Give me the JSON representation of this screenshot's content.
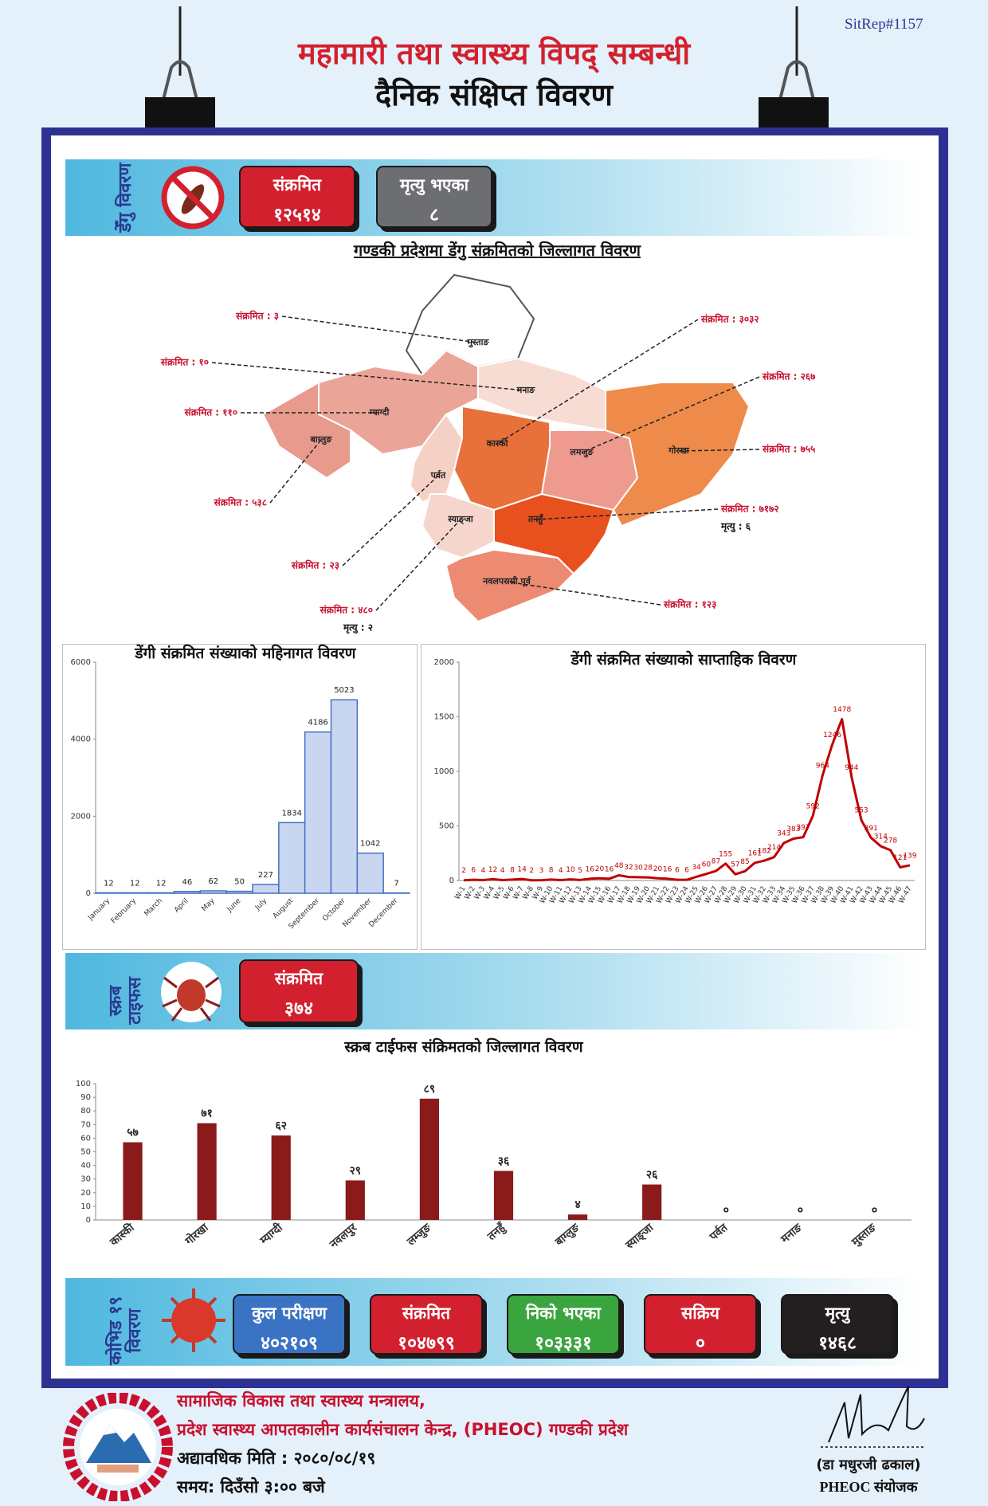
{
  "header": {
    "sitrep": "SitRep#1157",
    "title": "महामारी तथा स्वास्थ्य विपद् सम्बन्धी",
    "subtitle": "दैनिक संक्षिप्त विवरण"
  },
  "dengue": {
    "label": "डेँगु विवरण",
    "cards": [
      {
        "label": "संक्रमित",
        "value": "१२५१४"
      },
      {
        "label": "मृत्यु भएका",
        "value": "८"
      }
    ],
    "map": {
      "title": "गण्डकी प्रदेशमा डेंगु संक्रमितको जिल्लागत विवरण",
      "districts": [
        {
          "name": "मुस्ताङ",
          "cases": "संक्रमित : ३"
        },
        {
          "name": "मनाङ",
          "cases": "संक्रमित : १०"
        },
        {
          "name": "म्याग्दी",
          "cases": "संक्रमित : ११०"
        },
        {
          "name": "बाग्लुङ",
          "cases": "संक्रमित : ५३८"
        },
        {
          "name": "पर्वत",
          "cases": "संक्रमित : २३"
        },
        {
          "name": "स्याङ्जा",
          "cases": "संक्रमित : ४८०",
          "deaths": "मृत्यु : २"
        },
        {
          "name": "कास्की",
          "cases": "संक्रमित : ३०३२"
        },
        {
          "name": "लमजुङ",
          "cases": "संक्रमित : २६७"
        },
        {
          "name": "गोरखा",
          "cases": "संक्रमित : ७५५"
        },
        {
          "name": "तनहुँ",
          "cases": "संक्रमित : ७१७२",
          "deaths": "मृत्यु : ६"
        },
        {
          "name": "नवलपरासी पूर्व",
          "cases": "संक्रमित : १२३"
        }
      ]
    }
  },
  "scrub_typhus": {
    "label": "स्क्रब टाइफस",
    "cards": [
      {
        "label": "संक्रमित",
        "value": "३७४"
      }
    ]
  },
  "covid": {
    "label": "कोभिड १९ विवरण",
    "cards": [
      {
        "label": "कुल परीक्षण",
        "value": "४०२१०९"
      },
      {
        "label": "संक्रमित",
        "value": "१०४७९९"
      },
      {
        "label": "निको भएका",
        "value": "१०३३३१"
      },
      {
        "label": "सक्रिय",
        "value": "०"
      },
      {
        "label": "मृत्यु",
        "value": "१४६८"
      }
    ]
  },
  "footer": {
    "ministry": "सामाजिक विकास तथा स्वास्थ्य मन्त्रालय,",
    "center": "प्रदेश स्वास्थ्य आपतकालीन कार्यसंचालन केन्द्र, (PHEOC) गण्डकी प्रदेश",
    "date": "अद्यावधिक मिति : २०८०/०८/१९",
    "time": "समय: दिउँसो ३:०० बजे",
    "signer": "(डा मधुरजी ढकाल)",
    "role": "PHEOC संयोजक"
  },
  "chart_data": [
    {
      "type": "bar",
      "title": "डेंगी संक्रमित संख्याको महिनागत विवरण",
      "categories": [
        "January",
        "February",
        "March",
        "April",
        "May",
        "June",
        "July",
        "August",
        "September",
        "October",
        "November",
        "December"
      ],
      "values": [
        12,
        12,
        12,
        46,
        62,
        50,
        227,
        1834,
        4186,
        5023,
        1042,
        7
      ],
      "color": "#c9d6ef",
      "ylim": [
        0,
        6000
      ],
      "yticks": [
        0,
        2000,
        4000,
        6000
      ]
    },
    {
      "type": "line",
      "title": "डेंगी संक्रमित संख्याको साप्ताहिक विवरण",
      "categories": [
        "W-1",
        "W-2",
        "W-3",
        "W-4",
        "W-5",
        "W-6",
        "W-7",
        "W-8",
        "W-9",
        "W-10",
        "W-11",
        "W-12",
        "W-13",
        "W-14",
        "W-15",
        "W-16",
        "W-17",
        "W-18",
        "W-19",
        "W-20",
        "W-21",
        "W-22",
        "W-23",
        "W-24",
        "W-25",
        "W-26",
        "W-27",
        "W-28",
        "W-29",
        "W-30",
        "W-31",
        "W-32",
        "W-33",
        "W-34",
        "W-35",
        "W-36",
        "W-37",
        "W-38",
        "W-39",
        "W-40",
        "W-41",
        "W-42",
        "W-43",
        "W-44",
        "W-45",
        "W-46",
        "W-47"
      ],
      "values": [
        2,
        6,
        4,
        12,
        4,
        8,
        14,
        2,
        3,
        8,
        4,
        10,
        5,
        16,
        20,
        16,
        48,
        32,
        30,
        28,
        20,
        16,
        6,
        6,
        34,
        60,
        87,
        155,
        57,
        85,
        161,
        182,
        214,
        343,
        383,
        397,
        592,
        964,
        1246,
        1478,
        944,
        553,
        391,
        314,
        278,
        121,
        139
      ],
      "color": "#c00000",
      "ylim": [
        0,
        2000
      ],
      "yticks": [
        0,
        500,
        1000,
        1500,
        2000
      ]
    },
    {
      "type": "bar",
      "title": "स्क्रब टाईफस संक्रिमतको जिल्लागत विवरण",
      "categories": [
        "कास्की",
        "गोरखा",
        "म्याग्दी",
        "नवलपुर",
        "लम्जुङ",
        "तनहुँ",
        "बाग्लुङ",
        "स्याङ्जा",
        "पर्वत",
        "मनाङ",
        "मुस्ताङ"
      ],
      "values": [
        57,
        71,
        62,
        29,
        89,
        36,
        4,
        26,
        0,
        0,
        0
      ],
      "value_labels": [
        "५७",
        "७१",
        "६२",
        "२९",
        "८९",
        "३६",
        "४",
        "२६",
        "०",
        "०",
        "०"
      ],
      "color": "#8b1a1a",
      "ylim": [
        0,
        100
      ],
      "yticks": [
        0,
        10,
        20,
        30,
        40,
        50,
        60,
        70,
        80,
        90,
        100
      ]
    }
  ]
}
